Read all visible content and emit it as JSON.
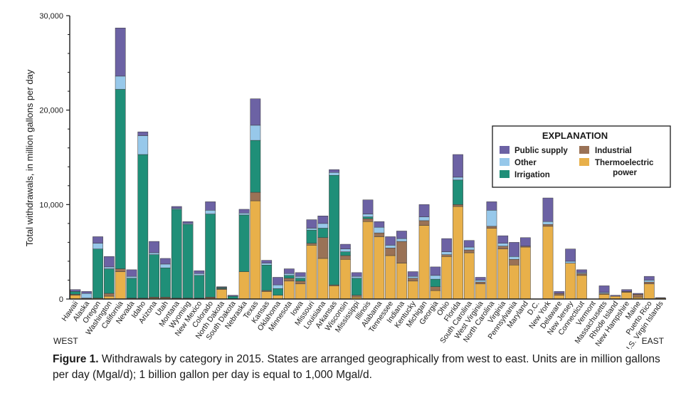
{
  "chart_data": {
    "type": "bar",
    "stacked": true,
    "ylabel": "Total withdrawals, in million gallons per day",
    "ylim": [
      0,
      30000
    ],
    "y_ticks": [
      0,
      10000,
      20000,
      30000
    ],
    "y_tick_labels": [
      "0",
      "10,000",
      "20,000",
      "30,000"
    ],
    "grid": false,
    "legend_placement": "right",
    "legend_title": "EXPLANATION",
    "direction_labels": {
      "left": "WEST",
      "right": "EAST"
    },
    "categories": [
      "Hawaii",
      "Alaska",
      "Oregon",
      "Washington",
      "California",
      "Nevada",
      "Idaho",
      "Arizona",
      "Utah",
      "Montana",
      "Wyoming",
      "New Mexico",
      "Colorado",
      "North Dakota",
      "South Dakota",
      "Nebraska",
      "Texas",
      "Kansas",
      "Oklahoma",
      "Minnesota",
      "Iowa",
      "Missouri",
      "Louisiana",
      "Arkansas",
      "Wisconsin",
      "Mississippi",
      "Illinois",
      "Alabama",
      "Tennessee",
      "Indiana",
      "Kentucky",
      "Michigan",
      "Georgia",
      "Ohio",
      "Florida",
      "South Carolina",
      "West Virginia",
      "North Carolina",
      "Virginia",
      "Pennsylvania",
      "Maryland",
      "D.C.",
      "New York",
      "Delaware",
      "New Jersey",
      "Connecticut",
      "Vermont",
      "Massachusetts",
      "Rhode Island",
      "New Hampshire",
      "Maine",
      "Puerto Rico",
      "U.S. Virgin Islands"
    ],
    "series": [
      {
        "name": "Thermoelectric power",
        "color": "#e8b04a",
        "values": [
          400,
          0,
          100,
          300,
          2900,
          0,
          0,
          100,
          100,
          0,
          0,
          50,
          100,
          1000,
          0,
          2900,
          10400,
          800,
          400,
          1900,
          1600,
          5700,
          4300,
          1400,
          4200,
          200,
          8200,
          6600,
          4600,
          3800,
          1900,
          7800,
          900,
          4500,
          9800,
          4900,
          1600,
          7500,
          5300,
          3600,
          5500,
          0,
          7700,
          400,
          3800,
          2500,
          0,
          500,
          300,
          700,
          200,
          1600,
          100
        ]
      },
      {
        "name": "Industrial",
        "color": "#9a7256",
        "values": [
          100,
          100,
          0,
          300,
          300,
          100,
          100,
          100,
          100,
          100,
          100,
          50,
          100,
          100,
          0,
          0,
          900,
          100,
          0,
          300,
          300,
          200,
          2200,
          100,
          400,
          200,
          300,
          400,
          800,
          2300,
          300,
          500,
          400,
          200,
          200,
          300,
          200,
          200,
          300,
          600,
          100,
          0,
          200,
          200,
          0,
          200,
          0,
          100,
          0,
          100,
          300,
          200,
          0
        ]
      },
      {
        "name": "Irrigation",
        "color": "#1f8f78",
        "values": [
          300,
          0,
          5200,
          2600,
          19000,
          2100,
          15200,
          4500,
          3100,
          9400,
          7800,
          2400,
          8800,
          100,
          300,
          6000,
          5500,
          2700,
          700,
          300,
          300,
          1400,
          1000,
          11600,
          400,
          1800,
          200,
          0,
          0,
          0,
          0,
          0,
          800,
          0,
          2600,
          0,
          0,
          0,
          0,
          0,
          0,
          0,
          0,
          0,
          0,
          0,
          0,
          0,
          0,
          0,
          0,
          0,
          0
        ]
      },
      {
        "name": "Other",
        "color": "#97c8ea",
        "values": [
          0,
          500,
          600,
          200,
          1400,
          200,
          2000,
          200,
          400,
          100,
          100,
          200,
          400,
          50,
          0,
          200,
          1600,
          200,
          400,
          200,
          200,
          200,
          500,
          300,
          300,
          200,
          300,
          600,
          300,
          300,
          200,
          400,
          400,
          300,
          300,
          300,
          200,
          1700,
          300,
          300,
          0,
          0,
          300,
          0,
          200,
          100,
          0,
          100,
          0,
          0,
          0,
          200,
          0
        ]
      },
      {
        "name": "Public supply",
        "color": "#6c62a4",
        "values": [
          200,
          200,
          700,
          1100,
          5100,
          700,
          400,
          1200,
          600,
          200,
          200,
          300,
          900,
          50,
          100,
          400,
          2800,
          300,
          800,
          500,
          400,
          900,
          800,
          300,
          500,
          400,
          1500,
          600,
          900,
          800,
          500,
          1300,
          900,
          1400,
          2400,
          700,
          300,
          900,
          800,
          1500,
          900,
          0,
          2500,
          200,
          1300,
          300,
          0,
          700,
          100,
          200,
          100,
          400,
          50
        ]
      }
    ],
    "legend_order": [
      "Public supply",
      "Other",
      "Irrigation",
      "Industrial",
      "Thermoelectric power"
    ],
    "legend_text": {
      "public_supply": "Public supply",
      "other": "Other",
      "irrigation": "Irrigation",
      "industrial": "Industrial",
      "thermo_line1": "Thermoelectric",
      "thermo_line2": "power"
    }
  },
  "caption": {
    "label": "Figure 1.",
    "text": " Withdrawals by category in 2015. States are arranged geographically from west to east. Units are in million gallons per day (Mgal/d); 1 billion gallon per day is equal to 1,000 Mgal/d."
  }
}
